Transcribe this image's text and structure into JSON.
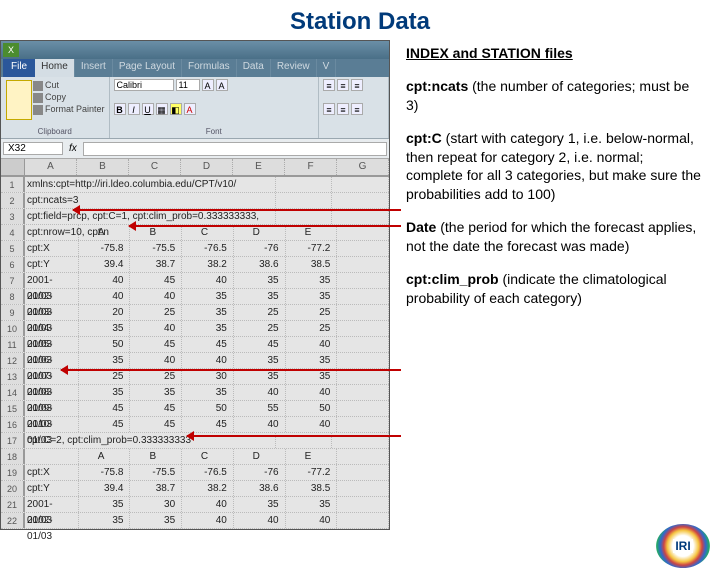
{
  "title": "Station Data",
  "ribbon": {
    "file": "File",
    "tabs": [
      "Home",
      "Insert",
      "Page Layout",
      "Formulas",
      "Data",
      "Review",
      "V"
    ],
    "active_tab": 0,
    "clipboard": {
      "cut": "Cut",
      "copy": "Copy",
      "fmt": "Format Painter",
      "label": "Clipboard",
      "paste": "Paste"
    },
    "font": {
      "name": "Calibri",
      "size": "11",
      "label": "Font"
    }
  },
  "namebox": "X32",
  "cols1": [
    "A",
    "B",
    "C",
    "D",
    "E",
    "F",
    "G"
  ],
  "rows": [
    {
      "n": "1",
      "merged": "xmlns:cpt=http://iri.ldeo.columbia.edu/CPT/v10/"
    },
    {
      "n": "2",
      "merged": "cpt:ncats=3"
    },
    {
      "n": "3",
      "merged": "cpt:field=prcp, cpt:C=1, cpt:clim_prob=0.333333333, cpt:nrow=10, cpt:n"
    },
    {
      "n": "4",
      "cells": [
        "",
        "A",
        "B",
        "C",
        "D",
        "E"
      ],
      "align": "c"
    },
    {
      "n": "5",
      "cells": [
        "cpt:X",
        "-75.8",
        "-75.5",
        "-76.5",
        "-76",
        "-77.2"
      ]
    },
    {
      "n": "6",
      "cells": [
        "cpt:Y",
        "39.4",
        "38.7",
        "38.2",
        "38.6",
        "38.5"
      ]
    },
    {
      "n": "7",
      "cells": [
        "2001-01/03",
        "40",
        "45",
        "40",
        "35",
        "35"
      ]
    },
    {
      "n": "8",
      "cells": [
        "2002-01/03",
        "40",
        "40",
        "35",
        "35",
        "35"
      ]
    },
    {
      "n": "9",
      "cells": [
        "2003-01/03",
        "20",
        "25",
        "35",
        "25",
        "25"
      ]
    },
    {
      "n": "10",
      "cells": [
        "2004-01/03",
        "35",
        "40",
        "35",
        "25",
        "25"
      ]
    },
    {
      "n": "11",
      "cells": [
        "2005-01/03",
        "50",
        "45",
        "45",
        "45",
        "40"
      ]
    },
    {
      "n": "12",
      "cells": [
        "2006-01/03",
        "35",
        "40",
        "40",
        "35",
        "35"
      ]
    },
    {
      "n": "13",
      "cells": [
        "2007-01/03",
        "25",
        "25",
        "30",
        "35",
        "35"
      ]
    },
    {
      "n": "14",
      "cells": [
        "2008-01/03",
        "35",
        "35",
        "35",
        "40",
        "40"
      ]
    },
    {
      "n": "15",
      "cells": [
        "2009-01/03",
        "45",
        "45",
        "50",
        "55",
        "50"
      ]
    },
    {
      "n": "16",
      "cells": [
        "2010-01/03",
        "45",
        "45",
        "45",
        "40",
        "40"
      ]
    },
    {
      "n": "17",
      "merged": "cpt:C=2, cpt:clim_prob=0.333333333"
    },
    {
      "n": "18",
      "cells": [
        "",
        "A",
        "B",
        "C",
        "D",
        "E"
      ],
      "align": "c"
    },
    {
      "n": "19",
      "cells": [
        "cpt:X",
        "-75.8",
        "-75.5",
        "-76.5",
        "-76",
        "-77.2"
      ]
    },
    {
      "n": "20",
      "cells": [
        "cpt:Y",
        "39.4",
        "38.7",
        "38.2",
        "38.6",
        "38.5"
      ]
    },
    {
      "n": "21",
      "cells": [
        "2001-01/03",
        "35",
        "30",
        "40",
        "35",
        "35"
      ]
    },
    {
      "n": "22",
      "cells": [
        "2002-01/03",
        "35",
        "35",
        "40",
        "40",
        "40"
      ]
    }
  ],
  "notes": {
    "header": "INDEX and STATION files",
    "p1a": "cpt:ncats",
    "p1b": " (the number of categories; must be 3)",
    "p2a": "cpt:C",
    "p2b": " (start with category 1, i.e. below-normal, then repeat for category 2, i.e. normal; complete for all 3 categories, but make sure the probabilities add to 100)",
    "p3a": "Date",
    "p3b": " (the period for which the forecast applies, not the date the forecast was made)",
    "p4a": "cpt:clim_prob",
    "p4b": " (indicate the climatological probability of each category)"
  },
  "logo_text": "IRI",
  "colors": {
    "arrow": "#c00000",
    "title": "#003a7a"
  }
}
